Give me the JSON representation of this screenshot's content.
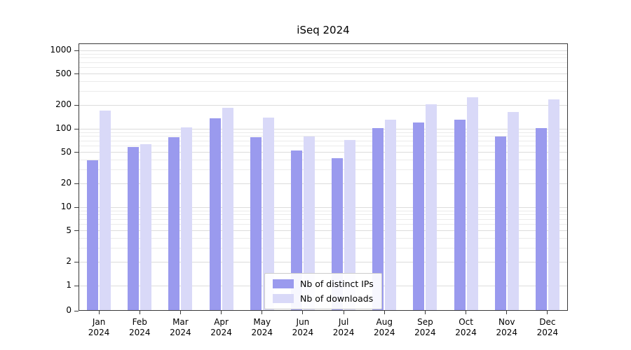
{
  "title": "iSeq 2024",
  "colors": {
    "ips": "#9a9aee",
    "downloads": "#d9d9f8",
    "grid_major": "#dcdcdc",
    "grid_minor": "#ebebeb",
    "axis": "#3a3a3a",
    "text": "#000000"
  },
  "legend": {
    "items": [
      {
        "label": "Nb of distinct IPs"
      },
      {
        "label": "Nb of downloads"
      }
    ],
    "position": "lower center"
  },
  "chart_data": {
    "type": "bar",
    "title": "iSeq 2024",
    "categories": [
      "Jan 2024",
      "Feb 2024",
      "Mar 2024",
      "Apr 2024",
      "May 2024",
      "Jun 2024",
      "Jul 2024",
      "Aug 2024",
      "Sep 2024",
      "Oct 2024",
      "Nov 2024",
      "Dec 2024"
    ],
    "series": [
      {
        "name": "Nb of distinct IPs",
        "key": "ips",
        "values": [
          40,
          58,
          78,
          135,
          78,
          53,
          42,
          102,
          120,
          130,
          80,
          102
        ]
      },
      {
        "name": "Nb of downloads",
        "key": "downloads",
        "values": [
          170,
          64,
          105,
          185,
          140,
          80,
          72,
          130,
          205,
          250,
          165,
          235
        ]
      }
    ],
    "xlabel": "",
    "ylabel": "",
    "yscale": "symlog",
    "yticks": [
      0,
      1,
      2,
      5,
      10,
      20,
      50,
      100,
      200,
      500,
      1000
    ],
    "ylim": [
      0,
      1000
    ],
    "grid": true,
    "legend_position": "lower center"
  }
}
